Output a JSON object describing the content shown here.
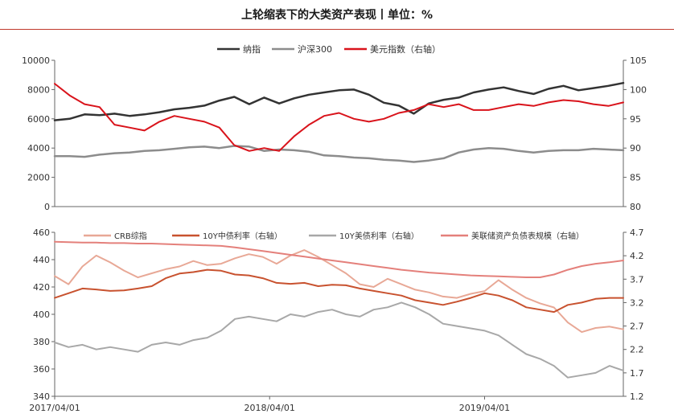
{
  "title": "上轮缩表下的大类资产表现丨单位：%",
  "chart_data": [
    {
      "type": "line",
      "panel": "top",
      "legend_placement": "top",
      "left_axis": {
        "ticks": [
          "0",
          "2000",
          "4000",
          "6000",
          "8000",
          "10000"
        ],
        "ylim": [
          0,
          10000
        ]
      },
      "right_axis": {
        "ticks": [
          "80",
          "85",
          "90",
          "95",
          "100",
          "105"
        ],
        "ylim": [
          80,
          105
        ]
      },
      "grid": false,
      "series": [
        {
          "name": "纳指",
          "axis": "left",
          "color": "#333333",
          "width": 2.5,
          "values": [
            5900,
            6000,
            6300,
            6250,
            6350,
            6200,
            6300,
            6450,
            6650,
            6750,
            6900,
            7250,
            7500,
            7000,
            7450,
            7050,
            7400,
            7650,
            7800,
            7950,
            8000,
            7650,
            7100,
            6900,
            6350,
            7050,
            7300,
            7450,
            7800,
            8000,
            8150,
            7900,
            7700,
            8050,
            8250,
            7950,
            8100,
            8250,
            8450
          ]
        },
        {
          "name": "沪深300",
          "axis": "left",
          "color": "#8c8c8c",
          "width": 2.5,
          "values": [
            3450,
            3450,
            3400,
            3550,
            3650,
            3700,
            3800,
            3850,
            3950,
            4050,
            4100,
            4000,
            4150,
            4100,
            3800,
            3900,
            3850,
            3750,
            3500,
            3450,
            3350,
            3300,
            3200,
            3150,
            3050,
            3150,
            3300,
            3700,
            3900,
            4000,
            3950,
            3800,
            3700,
            3800,
            3850,
            3850,
            3950,
            3900,
            3850
          ]
        },
        {
          "name": "美元指数（右轴）",
          "axis": "right",
          "color": "#d9131b",
          "width": 2,
          "values": [
            101,
            99,
            97.5,
            97,
            94,
            93.5,
            93,
            94.5,
            95.5,
            95,
            94.5,
            93.5,
            90.5,
            89.5,
            90,
            89.5,
            92,
            94,
            95.5,
            96,
            95,
            94.5,
            95,
            96,
            96.5,
            97.5,
            97,
            97.5,
            96.5,
            96.5,
            97,
            97.5,
            97.2,
            97.8,
            98.2,
            98,
            97.5,
            97.2,
            97.8
          ]
        }
      ]
    },
    {
      "type": "line",
      "panel": "bottom",
      "legend_placement": "top",
      "x_ticks": [
        "2017/04/01",
        "2018/04/01",
        "2019/04/01"
      ],
      "left_axis": {
        "ticks": [
          "340",
          "360",
          "380",
          "400",
          "420",
          "440",
          "460"
        ],
        "ylim": [
          340,
          460
        ]
      },
      "right_axis": {
        "ticks": [
          "1.2",
          "1.7",
          "2.2",
          "2.7",
          "3.2",
          "3.7",
          "4.2",
          "4.7"
        ],
        "ylim": [
          1.2,
          4.7
        ]
      },
      "grid": false,
      "series": [
        {
          "name": "CRB综指",
          "axis": "left",
          "color": "#e8a896",
          "width": 2,
          "values": [
            428,
            422,
            435,
            443,
            438,
            432,
            427,
            430,
            433,
            435,
            439,
            436,
            437,
            441,
            444,
            442,
            437,
            443,
            447,
            442,
            436,
            430,
            422,
            420,
            426,
            422,
            418,
            416,
            413,
            412,
            415,
            417,
            425,
            418,
            412,
            408,
            405,
            394,
            387,
            390,
            391,
            389
          ]
        },
        {
          "name": "10Y中债利率（右轴）",
          "axis": "right",
          "color": "#c8522f",
          "width": 2,
          "values": [
            3.3,
            3.4,
            3.5,
            3.48,
            3.45,
            3.46,
            3.5,
            3.55,
            3.72,
            3.82,
            3.85,
            3.9,
            3.88,
            3.8,
            3.78,
            3.72,
            3.62,
            3.6,
            3.62,
            3.55,
            3.58,
            3.57,
            3.5,
            3.45,
            3.4,
            3.35,
            3.25,
            3.2,
            3.15,
            3.22,
            3.3,
            3.4,
            3.35,
            3.25,
            3.1,
            3.05,
            3.0,
            3.15,
            3.2,
            3.28,
            3.3,
            3.3
          ]
        },
        {
          "name": "10Y美债利率（右轴）",
          "axis": "right",
          "color": "#a8a8a8",
          "width": 2,
          "values": [
            2.35,
            2.25,
            2.3,
            2.2,
            2.25,
            2.2,
            2.15,
            2.3,
            2.35,
            2.3,
            2.4,
            2.45,
            2.6,
            2.85,
            2.9,
            2.85,
            2.8,
            2.95,
            2.9,
            3.0,
            3.05,
            2.95,
            2.9,
            3.05,
            3.1,
            3.2,
            3.1,
            2.95,
            2.75,
            2.7,
            2.65,
            2.6,
            2.5,
            2.3,
            2.1,
            2.0,
            1.85,
            1.6,
            1.65,
            1.7,
            1.85,
            1.75
          ]
        },
        {
          "name": "美联储资产负债表规模（右轴）",
          "axis": "right",
          "color": "#e4807b",
          "width": 2,
          "values": [
            4.5,
            4.49,
            4.48,
            4.48,
            4.47,
            4.47,
            4.46,
            4.46,
            4.45,
            4.44,
            4.43,
            4.42,
            4.41,
            4.38,
            4.34,
            4.3,
            4.26,
            4.22,
            4.18,
            4.14,
            4.1,
            4.06,
            4.02,
            3.98,
            3.94,
            3.9,
            3.87,
            3.84,
            3.82,
            3.8,
            3.78,
            3.77,
            3.76,
            3.75,
            3.74,
            3.74,
            3.8,
            3.9,
            3.98,
            4.03,
            4.06,
            4.1
          ]
        }
      ]
    }
  ]
}
